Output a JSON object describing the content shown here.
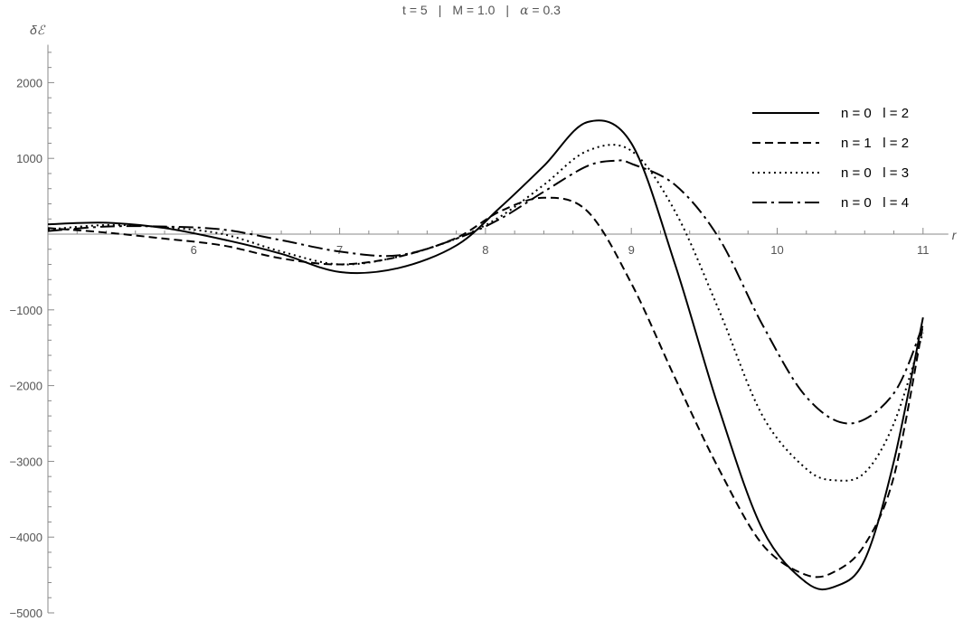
{
  "title": {
    "t_label": "t = 5",
    "m_label": "M = 1.0",
    "alpha_symbol": "α",
    "alpha_value": "= 0.3",
    "separator": "|"
  },
  "chart_data": {
    "type": "line",
    "xlabel": "r",
    "ylabel": "δℰ",
    "xlim": [
      5.0,
      11.0
    ],
    "ylim": [
      -5000,
      2500
    ],
    "x_ticks": [
      6,
      7,
      8,
      9,
      10,
      11
    ],
    "y_ticks": [
      -5000,
      -4000,
      -3000,
      -2000,
      -1000,
      1000,
      2000
    ],
    "legend_position": "top-right",
    "series": [
      {
        "name": "n = 0   l = 2",
        "style": "solid",
        "points": [
          [
            5.0,
            130
          ],
          [
            5.4,
            150
          ],
          [
            5.8,
            80
          ],
          [
            6.2,
            -70
          ],
          [
            6.6,
            -260
          ],
          [
            7.0,
            -500
          ],
          [
            7.4,
            -450
          ],
          [
            7.8,
            -150
          ],
          [
            8.1,
            350
          ],
          [
            8.4,
            900
          ],
          [
            8.7,
            1480
          ],
          [
            9.0,
            1200
          ],
          [
            9.3,
            -400
          ],
          [
            9.6,
            -2300
          ],
          [
            9.9,
            -3900
          ],
          [
            10.2,
            -4600
          ],
          [
            10.4,
            -4650
          ],
          [
            10.6,
            -4300
          ],
          [
            10.8,
            -3000
          ],
          [
            11.0,
            -1100
          ]
        ]
      },
      {
        "name": "n = 1   l = 2",
        "style": "dashed",
        "points": [
          [
            5.0,
            80
          ],
          [
            5.4,
            20
          ],
          [
            5.8,
            -60
          ],
          [
            6.2,
            -150
          ],
          [
            6.6,
            -320
          ],
          [
            7.0,
            -400
          ],
          [
            7.4,
            -300
          ],
          [
            7.8,
            -50
          ],
          [
            8.1,
            300
          ],
          [
            8.4,
            480
          ],
          [
            8.7,
            300
          ],
          [
            9.0,
            -650
          ],
          [
            9.3,
            -1900
          ],
          [
            9.6,
            -3100
          ],
          [
            9.9,
            -4100
          ],
          [
            10.2,
            -4500
          ],
          [
            10.4,
            -4450
          ],
          [
            10.6,
            -4100
          ],
          [
            10.8,
            -3200
          ],
          [
            11.0,
            -1200
          ]
        ]
      },
      {
        "name": "n = 0   l = 3",
        "style": "dotted",
        "points": [
          [
            5.0,
            60
          ],
          [
            5.4,
            120
          ],
          [
            5.8,
            90
          ],
          [
            6.2,
            0
          ],
          [
            6.6,
            -230
          ],
          [
            7.0,
            -400
          ],
          [
            7.4,
            -300
          ],
          [
            7.8,
            -60
          ],
          [
            8.1,
            230
          ],
          [
            8.4,
            650
          ],
          [
            8.7,
            1100
          ],
          [
            9.0,
            1100
          ],
          [
            9.3,
            300
          ],
          [
            9.6,
            -1000
          ],
          [
            9.9,
            -2400
          ],
          [
            10.2,
            -3100
          ],
          [
            10.4,
            -3250
          ],
          [
            10.6,
            -3150
          ],
          [
            10.8,
            -2500
          ],
          [
            11.0,
            -1300
          ]
        ]
      },
      {
        "name": "n = 0   l = 4",
        "style": "dash-dot",
        "points": [
          [
            5.0,
            40
          ],
          [
            5.4,
            100
          ],
          [
            5.8,
            100
          ],
          [
            6.2,
            60
          ],
          [
            6.6,
            -80
          ],
          [
            7.0,
            -230
          ],
          [
            7.4,
            -280
          ],
          [
            7.8,
            -60
          ],
          [
            8.1,
            200
          ],
          [
            8.4,
            560
          ],
          [
            8.7,
            900
          ],
          [
            8.9,
            970
          ],
          [
            9.0,
            930
          ],
          [
            9.3,
            650
          ],
          [
            9.6,
            -50
          ],
          [
            9.9,
            -1200
          ],
          [
            10.2,
            -2150
          ],
          [
            10.5,
            -2500
          ],
          [
            10.8,
            -2100
          ],
          [
            11.0,
            -1200
          ]
        ]
      }
    ]
  }
}
